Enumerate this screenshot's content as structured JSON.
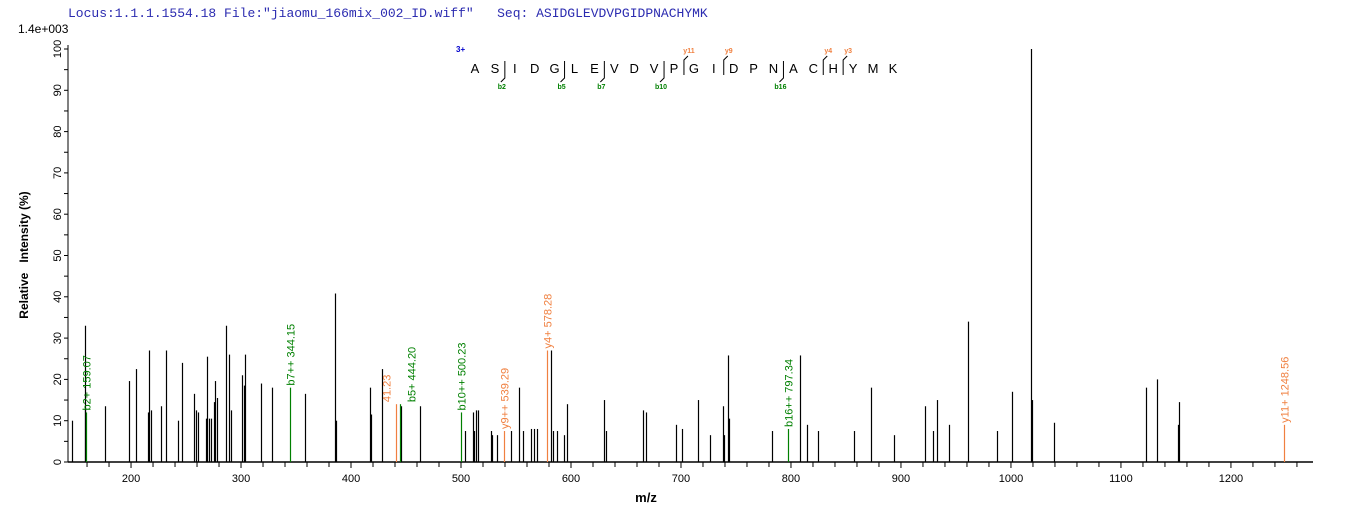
{
  "header": {
    "locus": "Locus:1.1.1.1554.18",
    "file": "File:\"jiaomu_166mix_002_ID.wiff\"",
    "seq": "Seq: ASIDGLEVDVPGIDPNACHYMK"
  },
  "colors": {
    "peak": "#000000",
    "b_ion": "#008000",
    "y_ion": "#f08040",
    "precursor": "#0000cc",
    "title": "#2b2bb0"
  },
  "chart_data": {
    "type": "bar",
    "scale_label": "1.4e+003",
    "xlabel": "m/z",
    "ylabel": "Relative   Intensity (%)",
    "xlim": [
      142.7,
      1274.6
    ],
    "ylim": [
      0,
      100
    ],
    "xticks": [
      200,
      300,
      400,
      500,
      600,
      700,
      800,
      900,
      1000,
      1100,
      1200
    ],
    "yticks": [
      0,
      10,
      20,
      30,
      40,
      50,
      60,
      70,
      80,
      90,
      100
    ],
    "grid": false,
    "peaks": [
      [
        146.4,
        10
      ],
      [
        157.9,
        33
      ],
      [
        158.3,
        13
      ],
      [
        176.4,
        13.5
      ],
      [
        198.2,
        19.6
      ],
      [
        204.5,
        22.5
      ],
      [
        215.5,
        12
      ],
      [
        216.4,
        27
      ],
      [
        218.2,
        12.5
      ],
      [
        227.3,
        13.5
      ],
      [
        231.8,
        27
      ],
      [
        242.7,
        10
      ],
      [
        246.4,
        24
      ],
      [
        257.3,
        16.5
      ],
      [
        259.1,
        12.5
      ],
      [
        260.9,
        12
      ],
      [
        268.2,
        10.5
      ],
      [
        269.1,
        25.5
      ],
      [
        270.9,
        10.5
      ],
      [
        272.7,
        10.5
      ],
      [
        275.5,
        14.5
      ],
      [
        276.4,
        19.6
      ],
      [
        278.2,
        15.5
      ],
      [
        286.4,
        33
      ],
      [
        289.1,
        26
      ],
      [
        290.9,
        12.5
      ],
      [
        300.9,
        21
      ],
      [
        302.7,
        18.5
      ],
      [
        303.6,
        26
      ],
      [
        318.2,
        19
      ],
      [
        328.2,
        18
      ],
      [
        358.2,
        16.5
      ],
      [
        385.5,
        40.8
      ],
      [
        386.4,
        10
      ],
      [
        417.3,
        18
      ],
      [
        418.2,
        11.5
      ],
      [
        428.2,
        22.5
      ],
      [
        445.5,
        13.5
      ],
      [
        462.7,
        13.5
      ],
      [
        503.6,
        7.5
      ],
      [
        510.9,
        12
      ],
      [
        511.8,
        7.5
      ],
      [
        513.6,
        12.5
      ],
      [
        515.5,
        12.5
      ],
      [
        527.3,
        7.5
      ],
      [
        528.2,
        6.5
      ],
      [
        532.7,
        6.5
      ],
      [
        545.5,
        7.5
      ],
      [
        552.7,
        18
      ],
      [
        556.4,
        7.5
      ],
      [
        563.6,
        8
      ],
      [
        566.4,
        8
      ],
      [
        569.1,
        8
      ],
      [
        581.8,
        27
      ],
      [
        583.6,
        7.5
      ],
      [
        587.3,
        7.5
      ],
      [
        593.6,
        6.5
      ],
      [
        596.4,
        14
      ],
      [
        630.0,
        15
      ],
      [
        631.8,
        7.5
      ],
      [
        665.5,
        12.5
      ],
      [
        668.2,
        12
      ],
      [
        695.5,
        9
      ],
      [
        700.9,
        8
      ],
      [
        715.5,
        15
      ],
      [
        726.4,
        6.5
      ],
      [
        738.2,
        13.5
      ],
      [
        739.1,
        6.5
      ],
      [
        742.7,
        25.8
      ],
      [
        743.6,
        10.5
      ],
      [
        782.7,
        7.5
      ],
      [
        808.2,
        25.8
      ],
      [
        814.5,
        9
      ],
      [
        824.5,
        7.5
      ],
      [
        857.3,
        7.5
      ],
      [
        872.7,
        18
      ],
      [
        893.6,
        6.5
      ],
      [
        921.8,
        13.5
      ],
      [
        929.1,
        7.5
      ],
      [
        932.7,
        15
      ],
      [
        943.6,
        9
      ],
      [
        960.9,
        34
      ],
      [
        987.3,
        7.5
      ],
      [
        1000.9,
        17
      ],
      [
        1018.2,
        100
      ],
      [
        1019.1,
        15
      ],
      [
        1039.1,
        9.5
      ],
      [
        1122.7,
        18
      ],
      [
        1132.7,
        20
      ],
      [
        1151.8,
        9
      ],
      [
        1152.7,
        14.5
      ]
    ],
    "annotations": [
      {
        "label": "b2+ 159.07",
        "mz": 159.07,
        "intensity": 12,
        "ion": "b"
      },
      {
        "label": "b7++ 344.15",
        "mz": 344.15,
        "intensity": 18,
        "ion": "b"
      },
      {
        "label": "41.23",
        "mz": 441.23,
        "intensity": 14,
        "ion": "y"
      },
      {
        "label": "b5+ 444.20",
        "mz": 444.2,
        "intensity": 14,
        "ion": "b"
      },
      {
        "label": "b10++ 500.23",
        "mz": 500.23,
        "intensity": 12,
        "ion": "b"
      },
      {
        "label": "y9++ 539.29",
        "mz": 539.29,
        "intensity": 7.5,
        "ion": "y"
      },
      {
        "label": "y4+ 578.28",
        "mz": 578.28,
        "intensity": 27,
        "ion": "y"
      },
      {
        "label": "b16++ 797.34",
        "mz": 797.34,
        "intensity": 8,
        "ion": "b"
      },
      {
        "label": "y11+ 1248.56",
        "mz": 1248.56,
        "intensity": 9,
        "ion": "y"
      }
    ],
    "peptide": {
      "charge": "3+",
      "residues": [
        "A",
        "S",
        "I",
        "D",
        "G",
        "L",
        "E",
        "V",
        "D",
        "V",
        "P",
        "G",
        "I",
        "D",
        "P",
        "N",
        "A",
        "C",
        "H",
        "Y",
        "M",
        "K"
      ],
      "b_ions": [
        {
          "label": "b2",
          "after": 2
        },
        {
          "label": "b5",
          "after": 5
        },
        {
          "label": "b7",
          "after": 7
        },
        {
          "label": "b10",
          "after": 10
        },
        {
          "label": "b16",
          "after": 16
        }
      ],
      "y_ions": [
        {
          "label": "y11",
          "after": 11
        },
        {
          "label": "y9",
          "after": 13
        },
        {
          "label": "y4",
          "after": 18
        },
        {
          "label": "y3",
          "after": 19
        }
      ]
    }
  }
}
